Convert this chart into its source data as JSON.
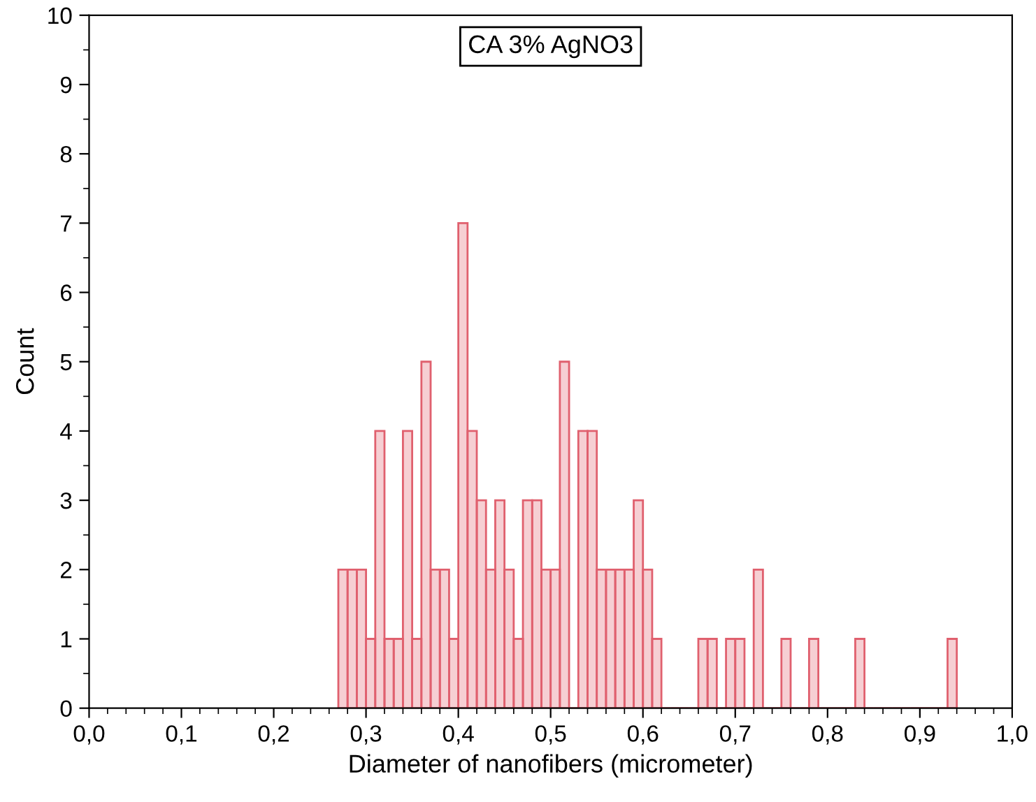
{
  "chart_data": {
    "type": "histogram",
    "title": "CA 3% AgNO3",
    "xlabel": "Diameter of nanofibers (micrometer)",
    "ylabel": "Count",
    "bins": [
      0.27,
      0.28,
      0.29,
      0.3,
      0.31,
      0.32,
      0.33,
      0.34,
      0.35,
      0.36,
      0.37,
      0.38,
      0.39,
      0.4,
      0.41,
      0.42,
      0.43,
      0.44,
      0.45,
      0.46,
      0.47,
      0.48,
      0.49,
      0.5,
      0.51,
      0.52,
      0.53,
      0.54,
      0.55,
      0.56,
      0.57,
      0.58,
      0.59,
      0.6,
      0.61,
      0.62,
      0.63,
      0.64,
      0.65,
      0.66,
      0.67,
      0.68,
      0.69,
      0.7,
      0.71,
      0.72,
      0.73,
      0.74,
      0.75,
      0.76,
      0.77,
      0.78,
      0.79,
      0.8,
      0.81,
      0.82,
      0.83,
      0.84,
      0.85,
      0.86,
      0.87,
      0.88,
      0.89,
      0.9,
      0.91,
      0.92,
      0.93,
      0.94
    ],
    "values": [
      2,
      2,
      2,
      1,
      4,
      1,
      1,
      4,
      1,
      5,
      2,
      2,
      1,
      7,
      4,
      3,
      2,
      3,
      2,
      1,
      3,
      3,
      2,
      2,
      5,
      0,
      4,
      4,
      2,
      2,
      2,
      2,
      3,
      2,
      1,
      0,
      0,
      0,
      0,
      1,
      1,
      0,
      1,
      1,
      0,
      2,
      0,
      0,
      1,
      0,
      0,
      1,
      0,
      0,
      0,
      0,
      1,
      0,
      0,
      0,
      0,
      0,
      0,
      0,
      0,
      0,
      1
    ],
    "color": "#e0606e",
    "xlim": [
      0,
      1
    ],
    "ylim": [
      0,
      10
    ],
    "xticks": [
      {
        "value": 0,
        "label": "0,0"
      },
      {
        "value": 0.1,
        "label": "0,1"
      },
      {
        "value": 0.2,
        "label": "0,2"
      },
      {
        "value": 0.3,
        "label": "0,3"
      },
      {
        "value": 0.4,
        "label": "0,4"
      },
      {
        "value": 0.5,
        "label": "0,5"
      },
      {
        "value": 0.6,
        "label": "0,6"
      },
      {
        "value": 0.7,
        "label": "0,7"
      },
      {
        "value": 0.8,
        "label": "0,8"
      },
      {
        "value": 0.9,
        "label": "0,9"
      },
      {
        "value": 1,
        "label": "1,0"
      }
    ],
    "yticks": [
      0,
      1,
      2,
      3,
      4,
      5,
      6,
      7,
      8,
      9,
      10
    ],
    "grid": false
  }
}
